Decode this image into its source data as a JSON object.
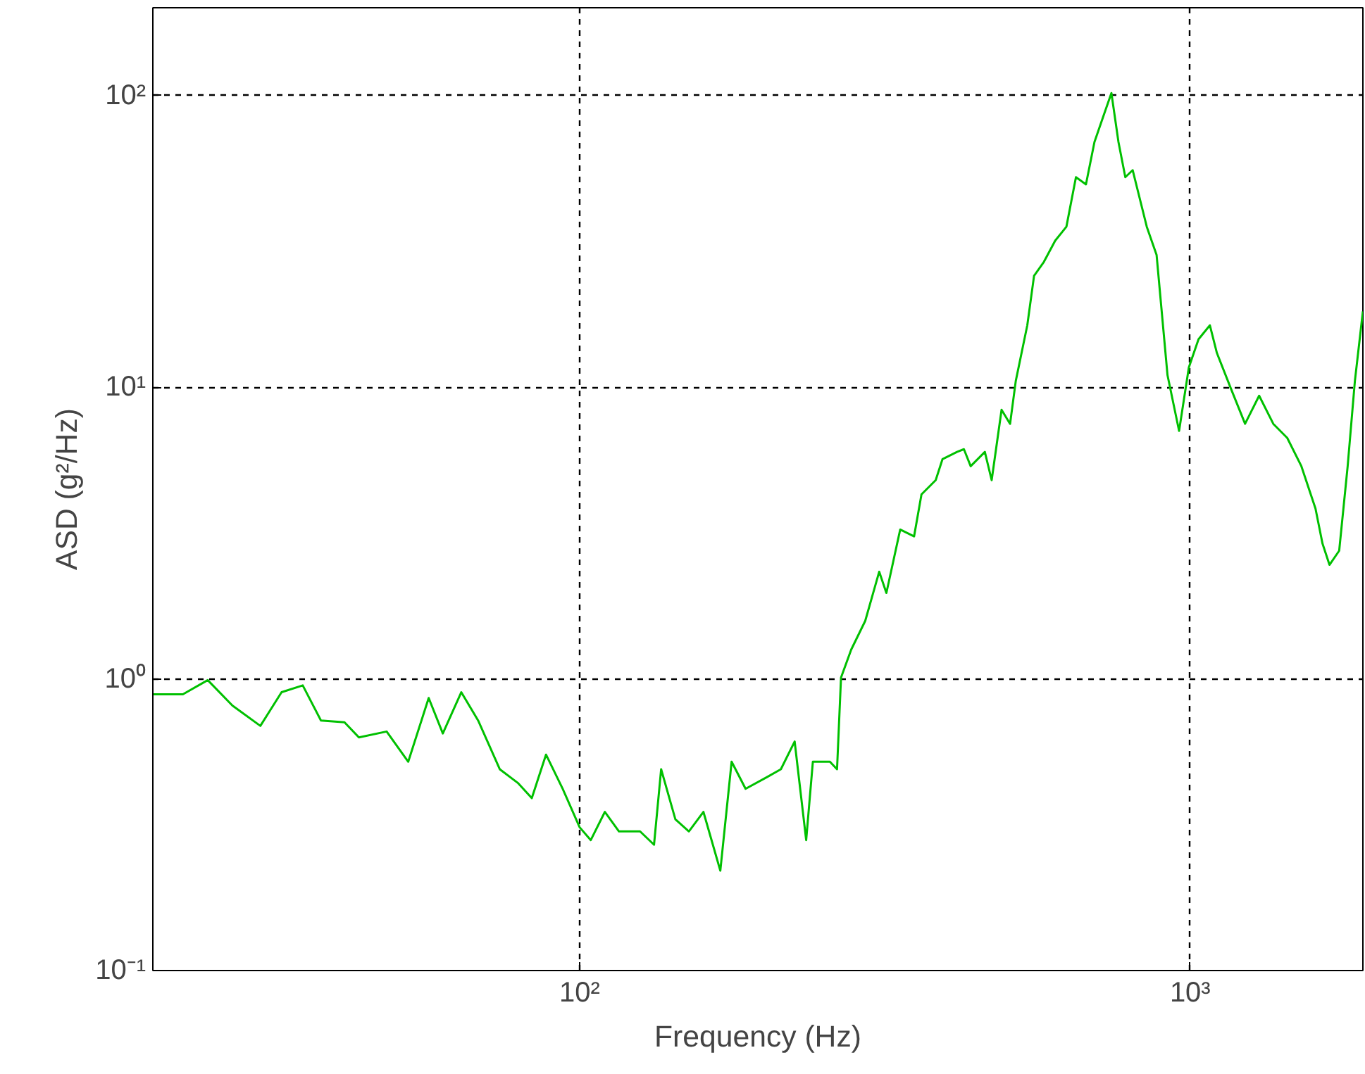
{
  "chart_data": {
    "type": "line",
    "xlabel": "Frequency (Hz)",
    "ylabel": "ASD (g²/Hz)",
    "log": "xy",
    "grid": true,
    "line_style": "solid",
    "marker": "none",
    "xlim": [
      20,
      1918
    ],
    "ylim": [
      0.1,
      200
    ],
    "xticks": [
      {
        "value": 100,
        "label": "10²"
      },
      {
        "value": 1000,
        "label": "10³"
      }
    ],
    "yticks": [
      {
        "value": 0.1,
        "label": "10⁻¹"
      },
      {
        "value": 1,
        "label": "10⁰"
      },
      {
        "value": 10,
        "label": "10¹"
      },
      {
        "value": 100,
        "label": "10²"
      }
    ],
    "x": [
      20.0,
      22.4,
      24.6,
      27.0,
      30.0,
      32.5,
      35.2,
      37.7,
      41.2,
      43.5,
      48.3,
      52.4,
      56.6,
      59.7,
      64.0,
      68.2,
      74.0,
      79.2,
      83.5,
      88.1,
      93.8,
      100,
      104.3,
      110,
      116,
      125.6,
      132.4,
      136,
      143.5,
      151,
      159.5,
      170,
      177.4,
      187,
      202.5,
      213.6,
      225,
      235,
      241,
      257,
      264,
      268,
      278.5,
      293.6,
      309.5,
      318,
      335,
      353,
      363,
      383,
      393,
      415,
      426,
      437,
      461,
      473,
      491,
      507,
      518,
      541,
      555,
      576,
      601,
      627,
      650,
      675,
      697,
      723,
      743,
      763,
      783,
      805,
      849,
      881,
      918,
      959,
      995,
      1032,
      1077,
      1106,
      1166,
      1230,
      1297,
      1368,
      1442,
      1521,
      1604,
      1647,
      1691,
      1754,
      1811,
      1861,
      1918
    ],
    "series": [
      {
        "color": "#00c000",
        "values": [
          0.885,
          0.885,
          0.99,
          0.81,
          0.69,
          0.9,
          0.95,
          0.72,
          0.71,
          0.63,
          0.66,
          0.52,
          0.86,
          0.65,
          0.9,
          0.72,
          0.49,
          0.44,
          0.39,
          0.55,
          0.42,
          0.31,
          0.28,
          0.35,
          0.3,
          0.3,
          0.27,
          0.49,
          0.33,
          0.3,
          0.35,
          0.22,
          0.52,
          0.42,
          0.46,
          0.49,
          0.61,
          0.28,
          0.52,
          0.52,
          0.49,
          1.01,
          1.26,
          1.58,
          2.33,
          1.97,
          3.25,
          3.08,
          4.29,
          4.8,
          5.67,
          6.0,
          6.13,
          5.36,
          6.0,
          4.8,
          8.37,
          7.49,
          10.5,
          16.3,
          24.1,
          26.9,
          31.8,
          35.5,
          52.5,
          49.6,
          69.3,
          86.5,
          102,
          69.3,
          52.5,
          55.5,
          35.5,
          28.4,
          11.0,
          7.08,
          11.7,
          14.6,
          16.3,
          13.1,
          9.89,
          7.49,
          9.35,
          7.49,
          6.7,
          5.36,
          3.84,
          2.91,
          2.46,
          2.75,
          5.36,
          10.5,
          18.2
        ]
      }
    ]
  }
}
